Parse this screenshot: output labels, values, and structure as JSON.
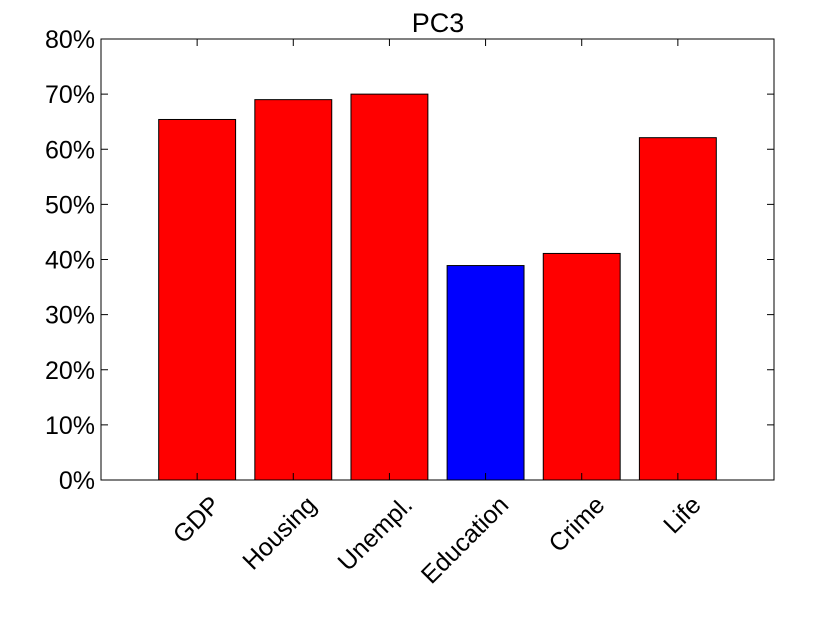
{
  "chart_data": {
    "type": "bar",
    "title": "PC3",
    "xlabel": "",
    "ylabel": "",
    "categories": [
      "GDP",
      "Housing",
      "Unempl.",
      "Education",
      "Crime",
      "Life"
    ],
    "values": [
      65.4,
      69.0,
      70.0,
      38.9,
      41.1,
      62.1
    ],
    "bar_colors": [
      "#ff0000",
      "#ff0000",
      "#ff0000",
      "#0000ff",
      "#ff0000",
      "#ff0000"
    ],
    "ylim": [
      0,
      80
    ],
    "yticks": [
      0,
      10,
      20,
      30,
      40,
      50,
      60,
      70,
      80
    ],
    "ytick_labels": [
      "0%",
      "10%",
      "20%",
      "30%",
      "40%",
      "50%",
      "60%",
      "70%",
      "80%"
    ],
    "grid": false,
    "legend": "none"
  }
}
